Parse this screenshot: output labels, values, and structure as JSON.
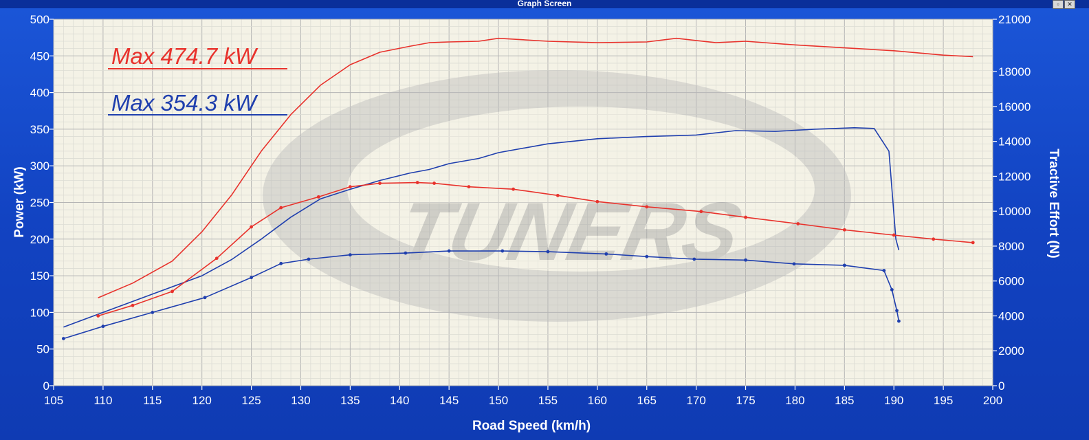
{
  "window": {
    "title": "Graph Screen"
  },
  "watermark": "TUNERS",
  "colors": {
    "red": "#e8322c",
    "blue": "#1f3fae",
    "frame": "#1446c8",
    "plot_bg": "#f4f2e6",
    "grid": "#c9c9c9"
  },
  "chart_data": {
    "type": "line",
    "xlabel": "Road Speed (km/h)",
    "ylabel": "Power (kW)",
    "y2label": "Tractive Effort (N)",
    "xlim": [
      105,
      200
    ],
    "ylim": [
      0,
      500
    ],
    "y2lim": [
      0,
      21000
    ],
    "x_ticks": [
      "105",
      "110",
      "115",
      "120",
      "125",
      "130",
      "135",
      "140",
      "145",
      "150",
      "155",
      "160",
      "165",
      "170",
      "175",
      "180",
      "185",
      "190",
      "195",
      "200"
    ],
    "y_ticks": [
      "0",
      "50",
      "100",
      "150",
      "200",
      "250",
      "300",
      "350",
      "400",
      "450",
      "500"
    ],
    "y2_ticks": [
      "0",
      "2000",
      "4000",
      "6000",
      "8000",
      "10000",
      "12000",
      "14000",
      "16000",
      "18000",
      "21000"
    ],
    "annotations": [
      {
        "text": "Max 474.7 kW",
        "color": "#e8322c"
      },
      {
        "text": "Max 354.3 kW",
        "color": "#1f3fae"
      }
    ],
    "series": [
      {
        "color": "#e8322c",
        "axis": "left",
        "x": [
          109.5,
          113,
          117,
          120,
          123,
          126,
          129,
          132,
          135,
          138,
          141,
          143,
          145,
          148,
          150,
          155,
          160,
          165,
          168,
          172,
          175,
          180,
          185,
          190,
          195,
          198
        ],
        "y": [
          120,
          140,
          170,
          210,
          260,
          320,
          370,
          410,
          438,
          455,
          463,
          468,
          469,
          470,
          474,
          470,
          468,
          469,
          474,
          468,
          470,
          465,
          461,
          457,
          451,
          449
        ]
      },
      {
        "color": "#1f3fae",
        "axis": "left",
        "x": [
          106,
          110,
          115,
          120,
          123,
          126,
          129,
          132,
          135,
          138,
          141,
          143,
          145,
          148,
          150,
          155,
          160,
          165,
          170,
          174,
          178,
          182,
          186,
          188,
          189.5,
          190.2,
          190.5
        ],
        "y": [
          80,
          100,
          125,
          150,
          172,
          200,
          230,
          255,
          268,
          280,
          290,
          295,
          303,
          310,
          318,
          330,
          337,
          340,
          342,
          348,
          347,
          350,
          352,
          351,
          320,
          200,
          185
        ]
      },
      {
        "color": "#e8322c",
        "axis": "right",
        "markers": true,
        "x": [
          109.5,
          113,
          117,
          121.5,
          125,
          128,
          131.8,
          135,
          138,
          141.8,
          143.5,
          147,
          151.5,
          156,
          160,
          165,
          170.5,
          175,
          180.3,
          185,
          190,
          194,
          198
        ],
        "y": [
          4000,
          4600,
          5400,
          7300,
          9100,
          10200,
          10820,
          11400,
          11600,
          11640,
          11600,
          11400,
          11260,
          10900,
          10550,
          10250,
          9980,
          9650,
          9280,
          8930,
          8630,
          8400,
          8200
        ]
      },
      {
        "color": "#1f3fae",
        "axis": "right",
        "markers": true,
        "x": [
          106,
          110,
          115,
          120.3,
          125,
          128,
          130.8,
          135,
          140.6,
          145,
          150.4,
          155,
          160.9,
          165,
          169.8,
          175,
          179.9,
          185,
          189,
          189.8,
          190.3,
          190.5
        ],
        "y": [
          2700,
          3400,
          4200,
          5050,
          6200,
          7000,
          7250,
          7500,
          7600,
          7720,
          7720,
          7680,
          7550,
          7400,
          7250,
          7200,
          6980,
          6900,
          6600,
          5500,
          4300,
          3700
        ]
      }
    ]
  }
}
